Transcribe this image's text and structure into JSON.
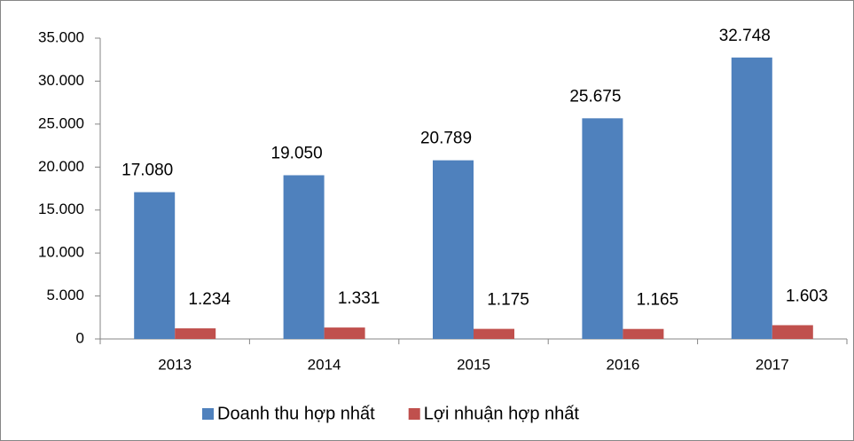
{
  "chart_data": {
    "type": "bar",
    "categories": [
      "2013",
      "2014",
      "2015",
      "2016",
      "2017"
    ],
    "series": [
      {
        "name": "Doanh thu hợp nhất",
        "color": "#4f81bd",
        "values": [
          17080,
          19050,
          20789,
          25675,
          32748
        ],
        "value_labels": [
          "17.080",
          "19.050",
          "20.789",
          "25.675",
          "32.748"
        ]
      },
      {
        "name": "Lợi nhuận hợp nhất",
        "color": "#c0504d",
        "values": [
          1234,
          1331,
          1175,
          1165,
          1603
        ],
        "value_labels": [
          "1.234",
          "1.331",
          "1.175",
          "1.165",
          "1.603"
        ]
      }
    ],
    "ylim": [
      0,
      35000
    ],
    "yticks": [
      0,
      {
        "value": 5000,
        "label": "5.000"
      },
      {
        "value": 10000,
        "label": "10.000"
      },
      {
        "value": 15000,
        "label": "15.000"
      },
      {
        "value": 20000,
        "label": "20.000"
      },
      {
        "value": 25000,
        "label": "25.000"
      },
      {
        "value": 30000,
        "label": "30.000"
      },
      {
        "value": 35000,
        "label": "35.000"
      }
    ],
    "legend": "bottom",
    "grid": false
  }
}
